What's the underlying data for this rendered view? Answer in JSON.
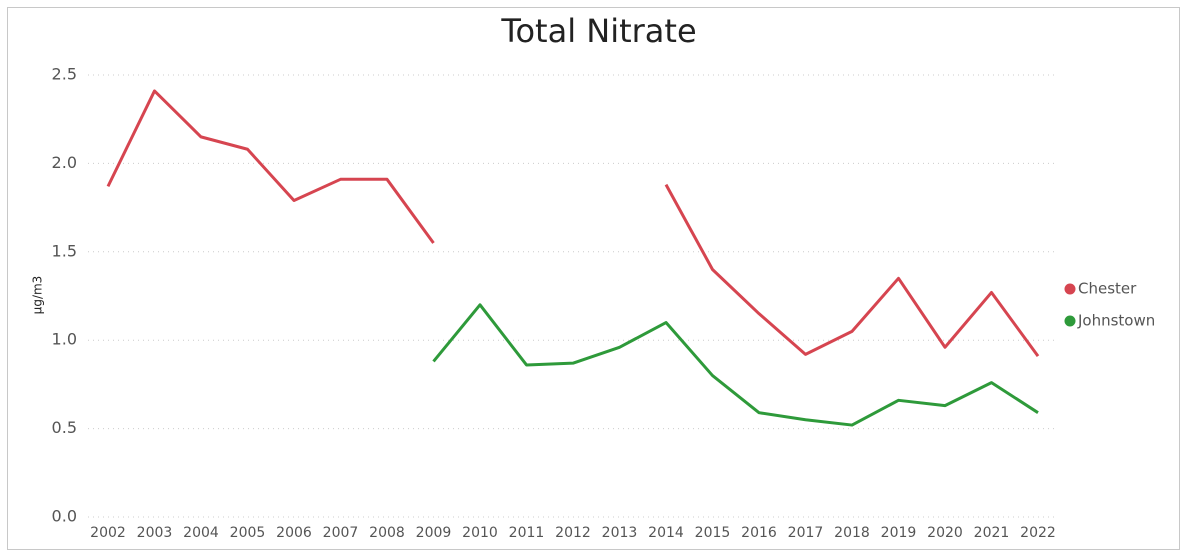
{
  "chart_data": {
    "type": "line",
    "title": "Total Nitrate",
    "y_label": "µg/m3",
    "categories": [
      "2002",
      "2003",
      "2004",
      "2005",
      "2006",
      "2007",
      "2008",
      "2009",
      "2010",
      "2011",
      "2012",
      "2013",
      "2014",
      "2015",
      "2016",
      "2017",
      "2018",
      "2019",
      "2020",
      "2021",
      "2022"
    ],
    "series": [
      {
        "name": "Chester",
        "color": "#d64550",
        "values": [
          1.87,
          2.41,
          2.15,
          2.08,
          1.79,
          1.91,
          1.91,
          1.55,
          null,
          null,
          null,
          null,
          1.88,
          1.4,
          1.15,
          0.92,
          1.05,
          1.35,
          0.96,
          1.27,
          0.91
        ]
      },
      {
        "name": "Johnstown",
        "color": "#2e9a3a",
        "values": [
          null,
          null,
          null,
          null,
          null,
          null,
          null,
          0.88,
          1.2,
          0.86,
          0.87,
          0.96,
          1.1,
          0.8,
          0.59,
          0.55,
          0.52,
          0.66,
          0.63,
          0.76,
          0.59
        ]
      }
    ],
    "ylim": [
      0,
      2.5
    ],
    "yticks": [
      {
        "value": 0,
        "label": "0.0"
      },
      0.5,
      {
        "value": 1,
        "label": "1.0"
      },
      1.5,
      {
        "value": 2,
        "label": "2.0"
      },
      2.5
    ],
    "grid": true,
    "legend": "right"
  }
}
